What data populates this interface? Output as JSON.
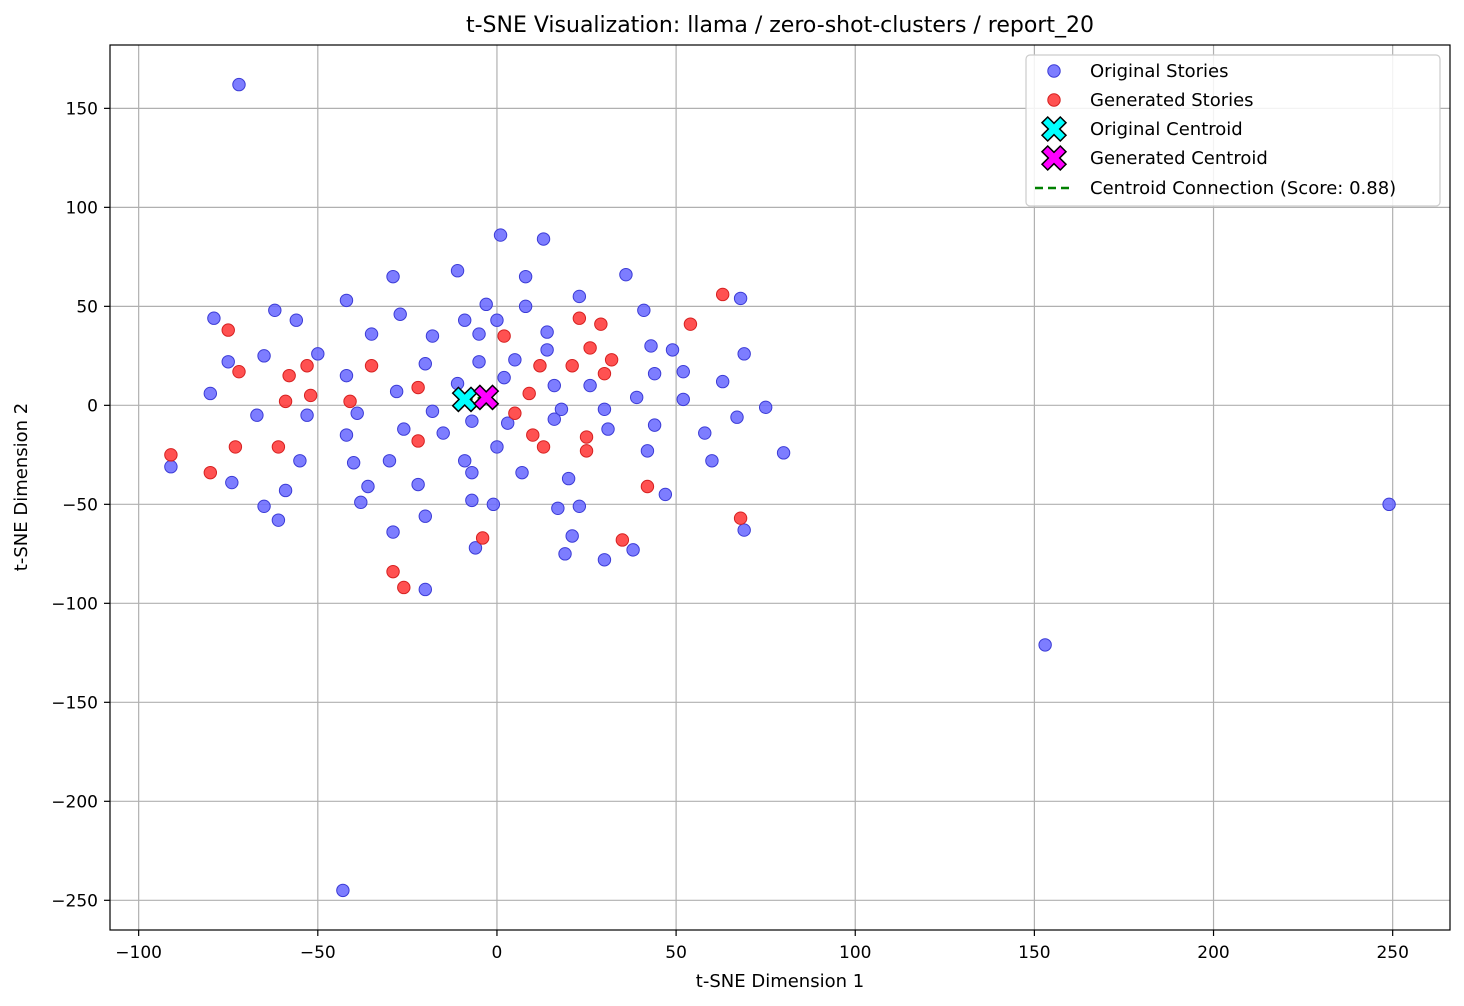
{
  "chart_data": {
    "type": "scatter",
    "title": "t-SNE Visualization: llama / zero-shot-clusters / report_20",
    "xlabel": "t-SNE Dimension 1",
    "ylabel": "t-SNE Dimension 2",
    "xlim": [
      -108,
      266
    ],
    "ylim": [
      -265,
      182
    ],
    "xticks": [
      -100,
      -50,
      0,
      50,
      100,
      150,
      200,
      250
    ],
    "yticks": [
      -250,
      -200,
      -150,
      -100,
      -50,
      0,
      50,
      100,
      150
    ],
    "grid": true,
    "legend_position": "top-right",
    "colors": {
      "original": "#6666ff",
      "generated": "#ff3333",
      "original_centroid": "#00ffff",
      "generated_centroid": "#ff00ff",
      "connection": "#008000"
    },
    "series": [
      {
        "name": "Original Stories",
        "kind": "points",
        "points": [
          [
            -72,
            162
          ],
          [
            -79,
            44
          ],
          [
            -75,
            22
          ],
          [
            -80,
            6
          ],
          [
            -91,
            -31
          ],
          [
            -74,
            -39
          ],
          [
            -67,
            -5
          ],
          [
            -65,
            25
          ],
          [
            -62,
            48
          ],
          [
            -56,
            43
          ],
          [
            -65,
            -51
          ],
          [
            -61,
            -58
          ],
          [
            -59,
            -43
          ],
          [
            -55,
            -28
          ],
          [
            -53,
            -5
          ],
          [
            -50,
            26
          ],
          [
            -42,
            53
          ],
          [
            -42,
            15
          ],
          [
            -42,
            -15
          ],
          [
            -40,
            -29
          ],
          [
            -39,
            -4
          ],
          [
            -38,
            -49
          ],
          [
            -36,
            -41
          ],
          [
            -35,
            36
          ],
          [
            -30,
            -28
          ],
          [
            -29,
            65
          ],
          [
            -29,
            -64
          ],
          [
            -28,
            7
          ],
          [
            -27,
            46
          ],
          [
            -26,
            -12
          ],
          [
            -22,
            -40
          ],
          [
            -20,
            21
          ],
          [
            -20,
            -56
          ],
          [
            -20,
            -93
          ],
          [
            -18,
            35
          ],
          [
            -18,
            -3
          ],
          [
            -15,
            -14
          ],
          [
            -11,
            68
          ],
          [
            -11,
            11
          ],
          [
            -9,
            43
          ],
          [
            -9,
            -28
          ],
          [
            -7,
            -8
          ],
          [
            -7,
            -34
          ],
          [
            -7,
            -48
          ],
          [
            -6,
            -72
          ],
          [
            -5,
            22
          ],
          [
            -5,
            36
          ],
          [
            -3,
            51
          ],
          [
            -1,
            -50
          ],
          [
            0,
            43
          ],
          [
            0,
            -21
          ],
          [
            1,
            86
          ],
          [
            2,
            14
          ],
          [
            3,
            -9
          ],
          [
            5,
            23
          ],
          [
            7,
            -34
          ],
          [
            8,
            65
          ],
          [
            8,
            50
          ],
          [
            13,
            84
          ],
          [
            14,
            37
          ],
          [
            14,
            28
          ],
          [
            16,
            10
          ],
          [
            16,
            -7
          ],
          [
            17,
            -52
          ],
          [
            18,
            -2
          ],
          [
            20,
            -37
          ],
          [
            19,
            -75
          ],
          [
            21,
            -66
          ],
          [
            23,
            55
          ],
          [
            23,
            -51
          ],
          [
            26,
            10
          ],
          [
            30,
            -2
          ],
          [
            31,
            -12
          ],
          [
            30,
            -78
          ],
          [
            36,
            66
          ],
          [
            38,
            -73
          ],
          [
            39,
            4
          ],
          [
            41,
            48
          ],
          [
            42,
            -23
          ],
          [
            43,
            30
          ],
          [
            44,
            16
          ],
          [
            44,
            -10
          ],
          [
            47,
            -45
          ],
          [
            49,
            28
          ],
          [
            52,
            17
          ],
          [
            52,
            3
          ],
          [
            58,
            -14
          ],
          [
            60,
            -28
          ],
          [
            63,
            12
          ],
          [
            67,
            -6
          ],
          [
            68,
            54
          ],
          [
            69,
            26
          ],
          [
            69,
            -63
          ],
          [
            75,
            -1
          ],
          [
            80,
            -24
          ],
          [
            153,
            -121
          ],
          [
            249,
            -50
          ],
          [
            -43,
            -245
          ]
        ]
      },
      {
        "name": "Generated Stories",
        "kind": "points",
        "points": [
          [
            -75,
            38
          ],
          [
            -72,
            17
          ],
          [
            -73,
            -21
          ],
          [
            -80,
            -34
          ],
          [
            -91,
            -25
          ],
          [
            -61,
            -21
          ],
          [
            -58,
            15
          ],
          [
            -59,
            2
          ],
          [
            -53,
            20
          ],
          [
            -52,
            5
          ],
          [
            -41,
            2
          ],
          [
            -35,
            20
          ],
          [
            -22,
            9
          ],
          [
            -22,
            -18
          ],
          [
            -29,
            -84
          ],
          [
            -26,
            -92
          ],
          [
            -4,
            -67
          ],
          [
            2,
            35
          ],
          [
            5,
            -4
          ],
          [
            9,
            6
          ],
          [
            10,
            -15
          ],
          [
            12,
            20
          ],
          [
            13,
            -21
          ],
          [
            21,
            20
          ],
          [
            23,
            44
          ],
          [
            25,
            -16
          ],
          [
            25,
            -23
          ],
          [
            26,
            29
          ],
          [
            29,
            41
          ],
          [
            30,
            16
          ],
          [
            32,
            23
          ],
          [
            35,
            -68
          ],
          [
            42,
            -41
          ],
          [
            54,
            41
          ],
          [
            63,
            56
          ],
          [
            68,
            -57
          ]
        ]
      },
      {
        "name": "Original Centroid",
        "kind": "centroid",
        "points": [
          [
            -9,
            3
          ]
        ]
      },
      {
        "name": "Generated Centroid",
        "kind": "centroid",
        "points": [
          [
            -3,
            4
          ]
        ]
      },
      {
        "name": "Centroid Connection (Score: 0.88)",
        "kind": "line",
        "points": [
          [
            -9,
            3
          ],
          [
            -3,
            4
          ]
        ]
      }
    ]
  }
}
